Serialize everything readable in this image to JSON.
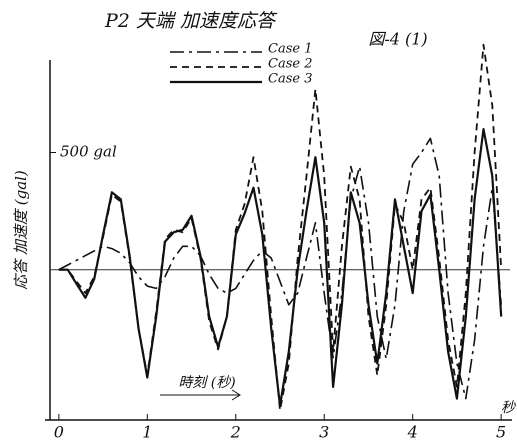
{
  "chart_data": {
    "type": "line",
    "title": "P2 天端 加速度応答",
    "figure_label": "図-4 (1)",
    "ylabel": "応答 加速度 (gal)",
    "xlabel": "時刻 (秒)",
    "x_unit_label": "秒",
    "x": [
      0,
      0.1,
      0.2,
      0.3,
      0.4,
      0.5,
      0.6,
      0.7,
      0.8,
      0.9,
      1,
      1.1,
      1.2,
      1.3,
      1.4,
      1.5,
      1.6,
      1.7,
      1.8,
      1.9,
      2,
      2.1,
      2.2,
      2.3,
      2.4,
      2.5,
      2.6,
      2.7,
      2.8,
      2.9,
      3,
      3.1,
      3.2,
      3.3,
      3.4,
      3.5,
      3.6,
      3.7,
      3.8,
      3.9,
      4,
      4.1,
      4.2,
      4.3,
      4.4,
      4.5,
      4.6,
      4.7,
      4.8,
      4.9,
      5
    ],
    "series": [
      {
        "name": "Case 1",
        "color": "#111111",
        "dash": "14 5 3 5",
        "width": 1.6,
        "values": [
          0,
          20,
          40,
          60,
          80,
          100,
          90,
          70,
          30,
          -30,
          -70,
          -80,
          -30,
          50,
          100,
          100,
          60,
          -20,
          -80,
          -100,
          -80,
          -20,
          40,
          80,
          50,
          -50,
          -150,
          -100,
          50,
          200,
          -100,
          -375,
          -100,
          300,
          440,
          200,
          -200,
          -380,
          -150,
          250,
          450,
          500,
          560,
          400,
          -100,
          -400,
          -550,
          -300,
          100,
          350,
          -150
        ]
      },
      {
        "name": "Case 2",
        "color": "#111111",
        "dash": "7 5",
        "width": 1.8,
        "values": [
          0,
          0,
          -50,
          -100,
          -30,
          140,
          320,
          290,
          50,
          -250,
          -450,
          -180,
          130,
          170,
          160,
          220,
          50,
          -220,
          -340,
          -200,
          170,
          280,
          480,
          250,
          -200,
          -600,
          -400,
          50,
          400,
          770,
          400,
          -350,
          100,
          440,
          300,
          -200,
          -450,
          -150,
          280,
          200,
          0,
          300,
          350,
          50,
          -300,
          -500,
          -100,
          500,
          960,
          700,
          0
        ]
      },
      {
        "name": "Case 3",
        "color": "#111111",
        "dash": "",
        "width": 2.2,
        "values": [
          0,
          0,
          -60,
          -120,
          -40,
          150,
          330,
          300,
          60,
          -250,
          -460,
          -200,
          120,
          160,
          170,
          230,
          60,
          -200,
          -330,
          -200,
          150,
          240,
          350,
          150,
          -250,
          -580,
          -350,
          0,
          250,
          480,
          200,
          -500,
          -150,
          330,
          200,
          -150,
          -400,
          -100,
          300,
          100,
          -100,
          250,
          320,
          0,
          -350,
          -550,
          -200,
          300,
          600,
          400,
          -200
        ]
      }
    ],
    "xlim": [
      -0.1,
      5.1
    ],
    "xticks": [
      0,
      1,
      2,
      3,
      4,
      5
    ],
    "ylim": [
      -620,
      980
    ],
    "yticks": [
      {
        "value": 500,
        "label": "500 gal"
      }
    ]
  }
}
